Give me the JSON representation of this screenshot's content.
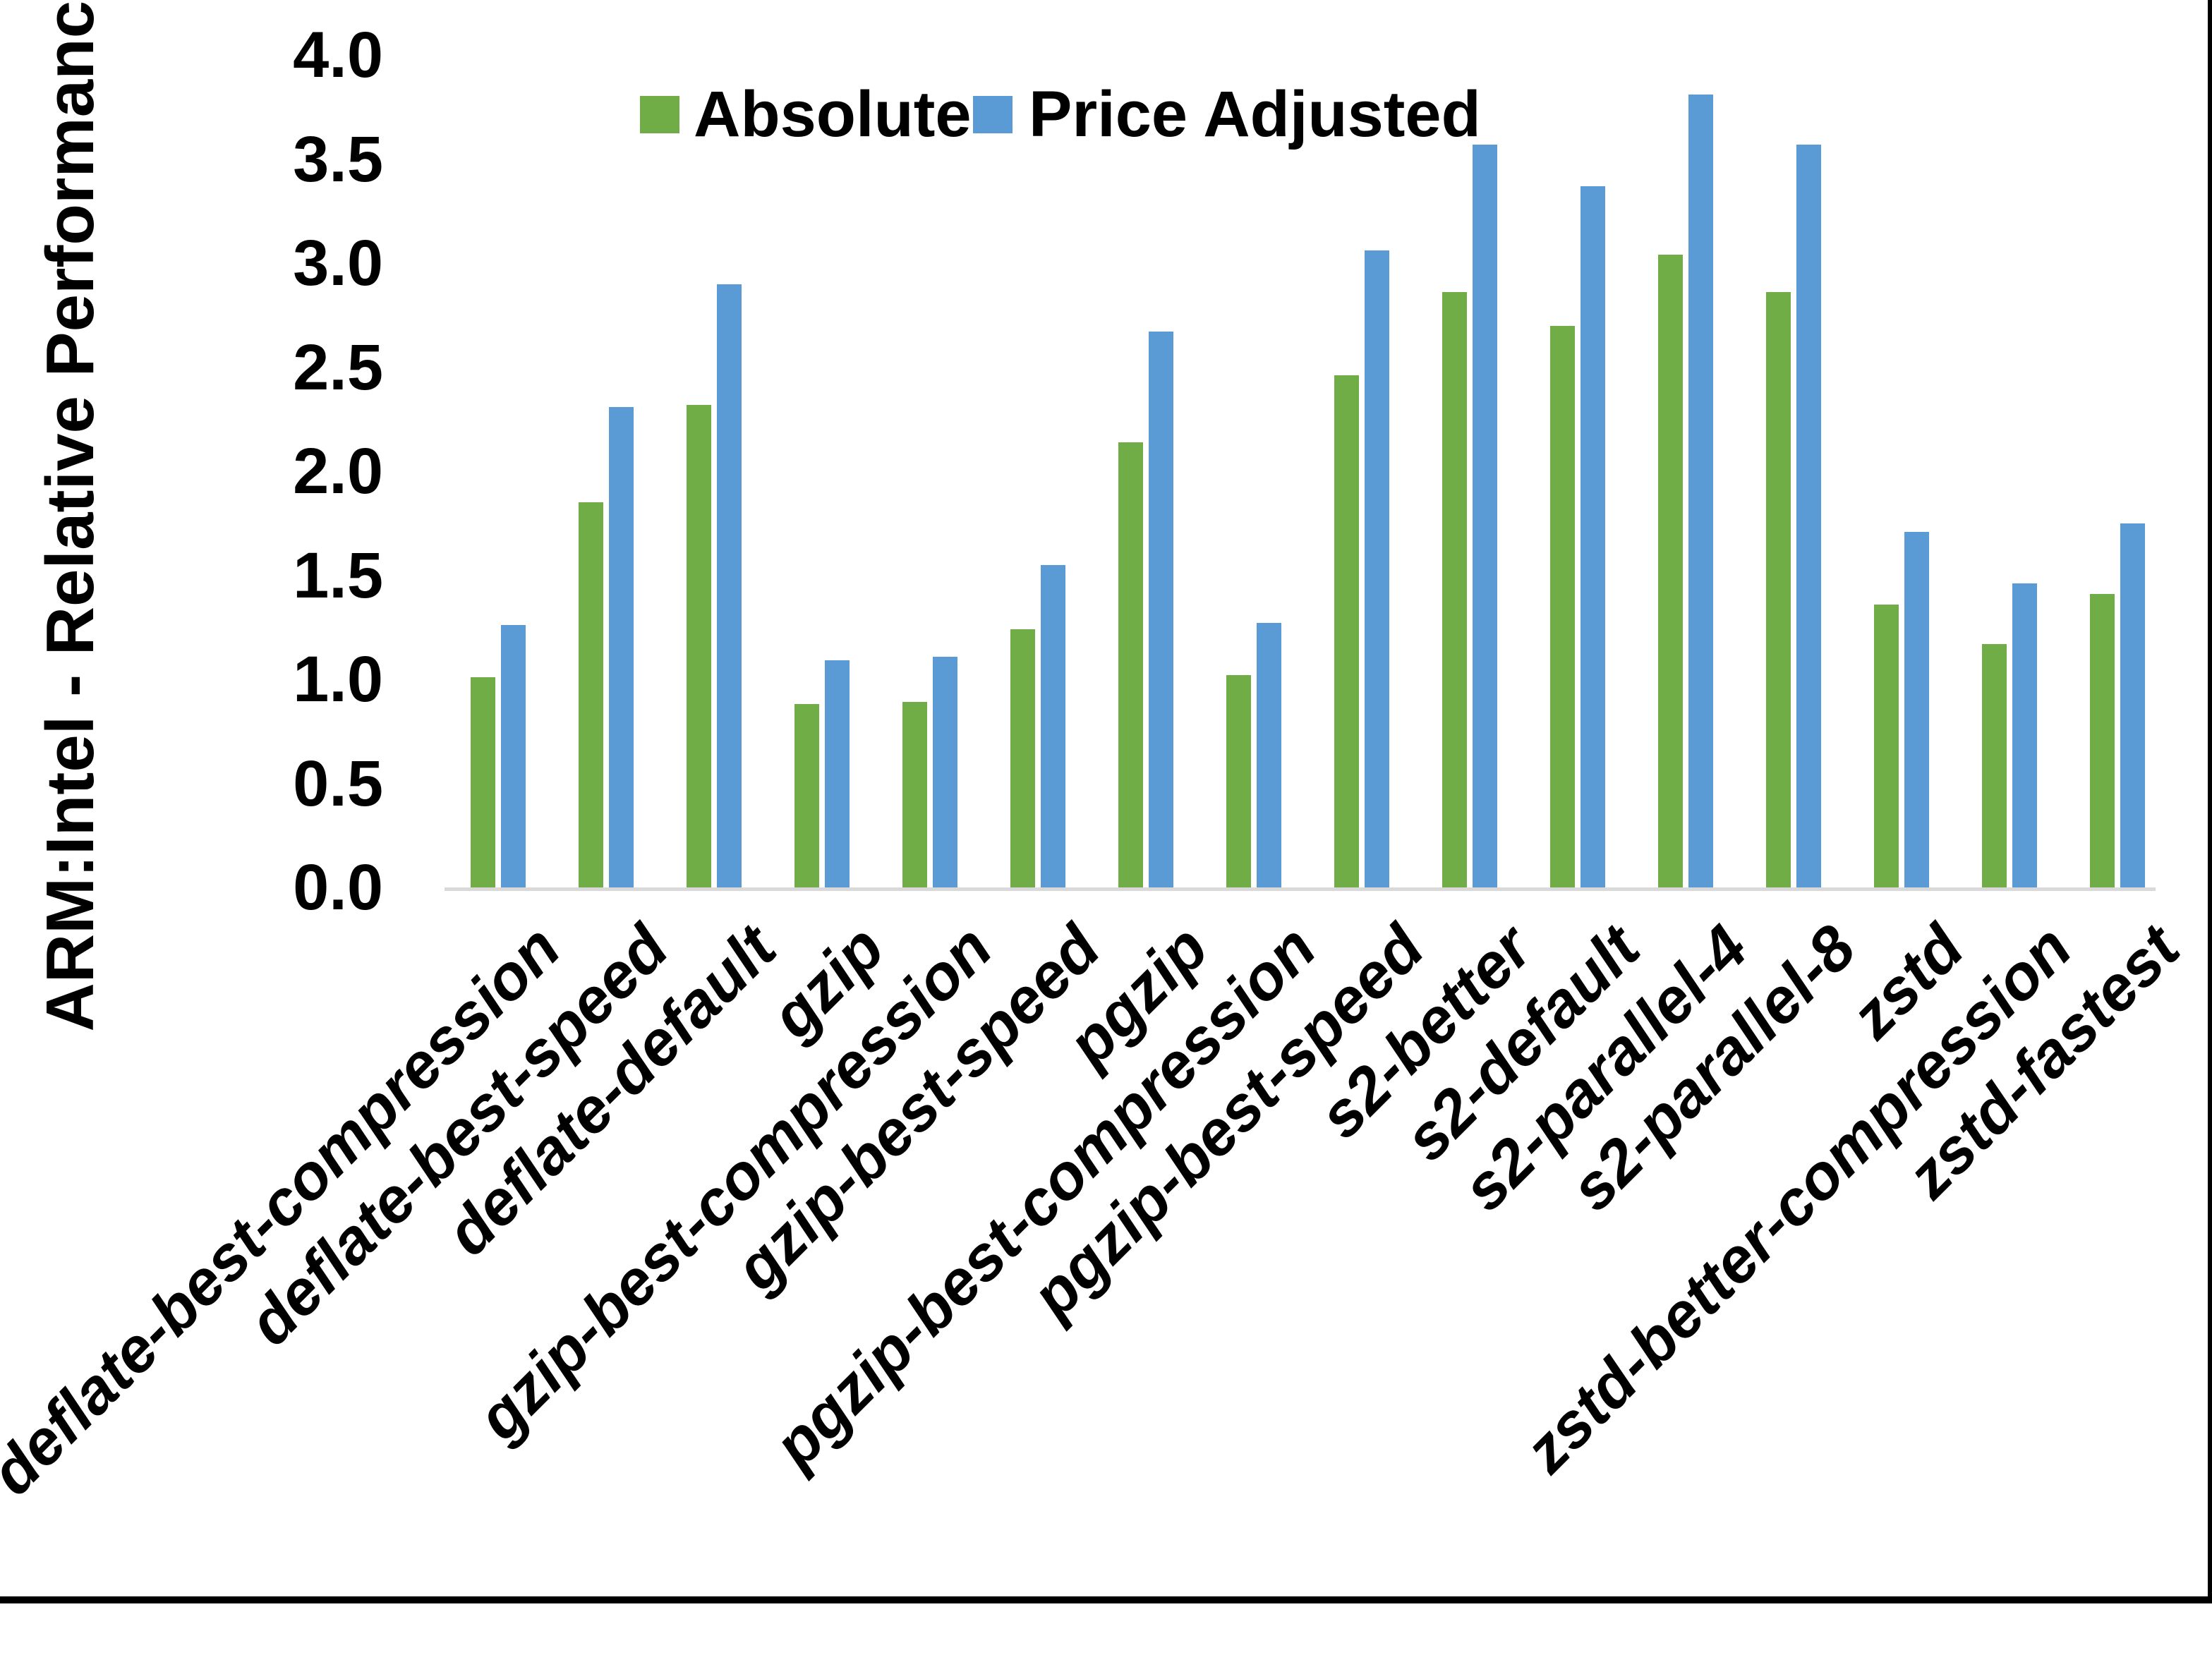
{
  "chart_data": {
    "type": "bar",
    "title": "",
    "xlabel": "",
    "ylabel": "ARM:Intel - Relative Performance",
    "ylim": [
      0.0,
      4.0
    ],
    "ytick_step": 0.5,
    "ytick_labels": [
      "0.0",
      "0.5",
      "1.0",
      "1.5",
      "2.0",
      "2.5",
      "3.0",
      "3.5",
      "4.0"
    ],
    "grid": false,
    "legend_position": "top-center",
    "axis_line_color": "#d9d9d9",
    "categories": [
      "deflate-best-compression",
      "deflate-best-speed",
      "deflate-default",
      "gzip",
      "gzip-best-compression",
      "gzip-best-speed",
      "pgzip",
      "pgzip-best-compression",
      "pgzip-best-speed",
      "s2-better",
      "s2-default",
      "s2-parallel-4",
      "s2-parallel-8",
      "zstd",
      "zstd-better-compression",
      "zstd-fastest"
    ],
    "series": [
      {
        "name": "Absolute",
        "color": "#70AD47",
        "values": [
          1.01,
          1.85,
          2.32,
          0.88,
          0.89,
          1.24,
          2.14,
          1.02,
          2.46,
          2.86,
          2.7,
          3.04,
          2.86,
          1.36,
          1.17,
          1.41
        ]
      },
      {
        "name": "Price Adjusted",
        "color": "#5B9BD5",
        "values": [
          1.26,
          2.31,
          2.9,
          1.09,
          1.11,
          1.55,
          2.67,
          1.27,
          3.06,
          3.57,
          3.37,
          3.81,
          3.57,
          1.71,
          1.46,
          1.75
        ]
      }
    ]
  }
}
